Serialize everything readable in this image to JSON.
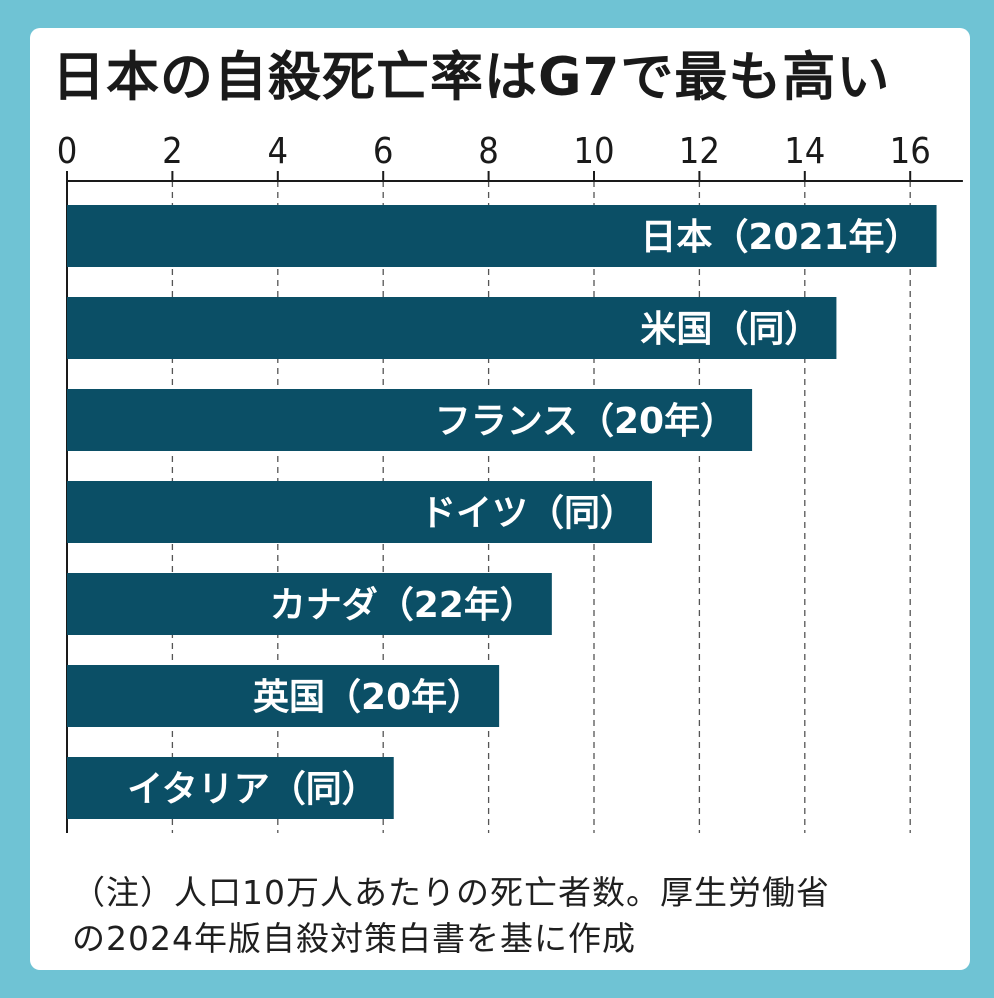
{
  "title": "日本の自殺死亡率はG7で最も高い",
  "note": {
    "line1": "（注）人口10万人あたりの死亡者数。厚生労働省",
    "line2": "の2024年版自殺対策白書を基に作成"
  },
  "colors": {
    "background": "#6fc3d4",
    "bar": "#0b4f66",
    "card": "#ffffff"
  },
  "chart_data": {
    "type": "bar",
    "orientation": "horizontal",
    "title": "日本の自殺死亡率はG7で最も高い",
    "categories": [
      "日本（2021年）",
      "米国（同）",
      "フランス（20年）",
      "ドイツ（同）",
      "カナダ（22年）",
      "英国（20年）",
      "イタリア（同）"
    ],
    "values": [
      16.5,
      14.6,
      13.0,
      11.1,
      9.2,
      8.2,
      6.2
    ],
    "xlim": [
      0,
      17
    ],
    "xticks": [
      0,
      2,
      4,
      6,
      8,
      10,
      12,
      14,
      16
    ],
    "tick_labels": [
      "0",
      "2",
      "4",
      "6",
      "8",
      "10",
      "12",
      "14",
      "16"
    ],
    "axis_position": "top",
    "grid": true
  }
}
